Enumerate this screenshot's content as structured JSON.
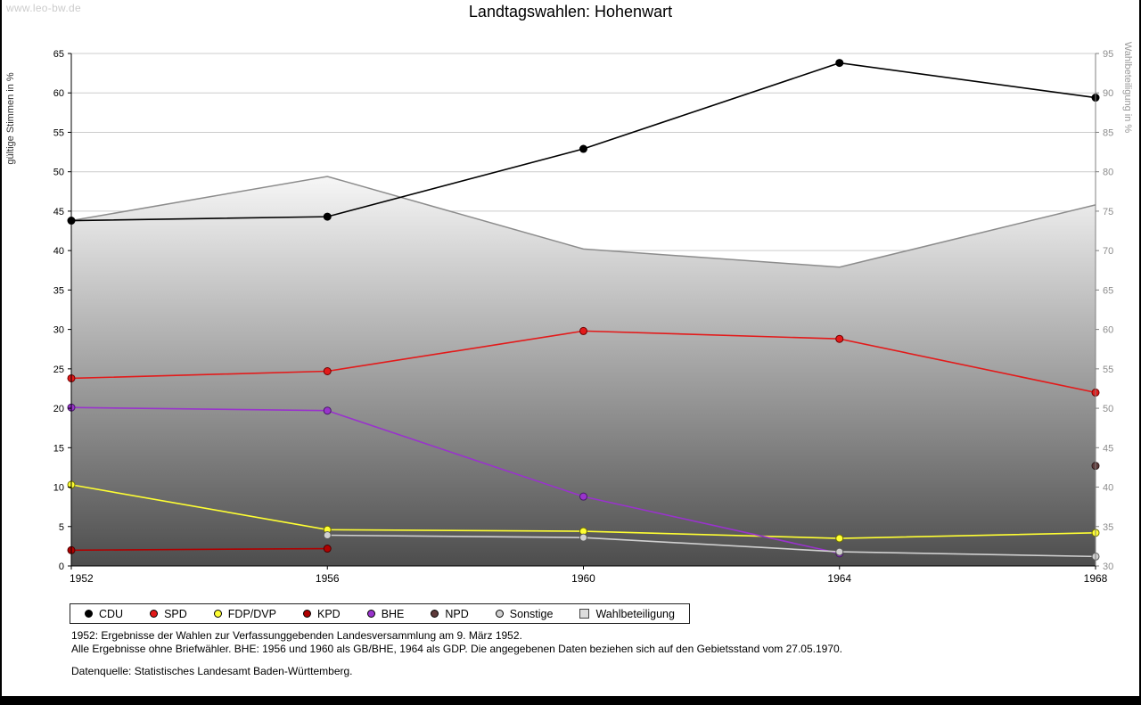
{
  "watermark": "www.leo-bw.de",
  "title": "Landtagswahlen: Hohenwart",
  "chart_data": {
    "type": "line",
    "title": "Landtagswahlen: Hohenwart",
    "x": [
      "1952",
      "1956",
      "1960",
      "1964",
      "1968"
    ],
    "left_axis": {
      "label": "gültige Stimmen in %",
      "min": 0,
      "max": 65,
      "step": 5
    },
    "right_axis": {
      "label": "Wahlbeteiligung in %",
      "min": 30,
      "max": 95,
      "step": 5
    },
    "grid": true,
    "grid_color": "#cccccc",
    "area_series": {
      "name": "Wahlbeteiligung",
      "axis": "right",
      "values": [
        73.8,
        79.4,
        70.2,
        67.9,
        75.8
      ],
      "line_color": "#8c8c8c",
      "fill_top": "#f8f8f8",
      "fill_bottom": "#4d4d4d"
    },
    "series": [
      {
        "name": "CDU",
        "axis": "left",
        "color": "#000000",
        "marker_border": "#000000",
        "values": [
          43.8,
          44.3,
          52.9,
          63.8,
          59.4
        ]
      },
      {
        "name": "SPD",
        "axis": "left",
        "color": "#e31a1a",
        "marker_border": "#6e0000",
        "values": [
          23.8,
          24.7,
          29.8,
          28.8,
          22.0
        ]
      },
      {
        "name": "FDP/DVP",
        "axis": "left",
        "color": "#ffff33",
        "marker_border": "#6e6e00",
        "values": [
          10.3,
          4.6,
          4.4,
          3.5,
          4.2
        ]
      },
      {
        "name": "KPD",
        "axis": "left",
        "color": "#b00000",
        "marker_border": "#4d0000",
        "values": [
          2.0,
          2.2,
          null,
          null,
          null
        ]
      },
      {
        "name": "BHE",
        "axis": "left",
        "color": "#9933cc",
        "marker_border": "#451a66",
        "values": [
          20.1,
          19.7,
          8.8,
          1.6,
          null
        ]
      },
      {
        "name": "NPD",
        "axis": "left",
        "color": "#5e3a3a",
        "marker_border": "#2b1a1a",
        "values": [
          null,
          null,
          null,
          null,
          12.7
        ]
      },
      {
        "name": "Sonstige",
        "axis": "left",
        "color": "#d0d0d0",
        "marker_border": "#595959",
        "values": [
          null,
          3.9,
          3.6,
          1.8,
          1.2
        ]
      }
    ]
  },
  "legend": {
    "items": [
      {
        "label": "CDU",
        "color": "#000000",
        "shape": "circle"
      },
      {
        "label": "SPD",
        "color": "#e31a1a",
        "shape": "circle"
      },
      {
        "label": "FDP/DVP",
        "color": "#ffff33",
        "shape": "circle"
      },
      {
        "label": "KPD",
        "color": "#b00000",
        "shape": "circle"
      },
      {
        "label": "BHE",
        "color": "#9933cc",
        "shape": "circle"
      },
      {
        "label": "NPD",
        "color": "#5e3a3a",
        "shape": "circle"
      },
      {
        "label": "Sonstige",
        "color": "#d0d0d0",
        "shape": "circle"
      },
      {
        "label": "Wahlbeteiligung",
        "color": "#dddddd",
        "shape": "square"
      }
    ]
  },
  "footnotes": {
    "line1": "1952: Ergebnisse der Wahlen zur Verfassunggebenden Landesversammlung am 9. März 1952.",
    "line2": "Alle Ergebnisse ohne Briefwähler. BHE: 1956 und 1960 als GB/BHE, 1964 als GDP. Die angegebenen Daten beziehen sich auf den Gebietsstand vom 27.05.1970.",
    "source": "Datenquelle: Statistisches Landesamt Baden-Württemberg."
  }
}
